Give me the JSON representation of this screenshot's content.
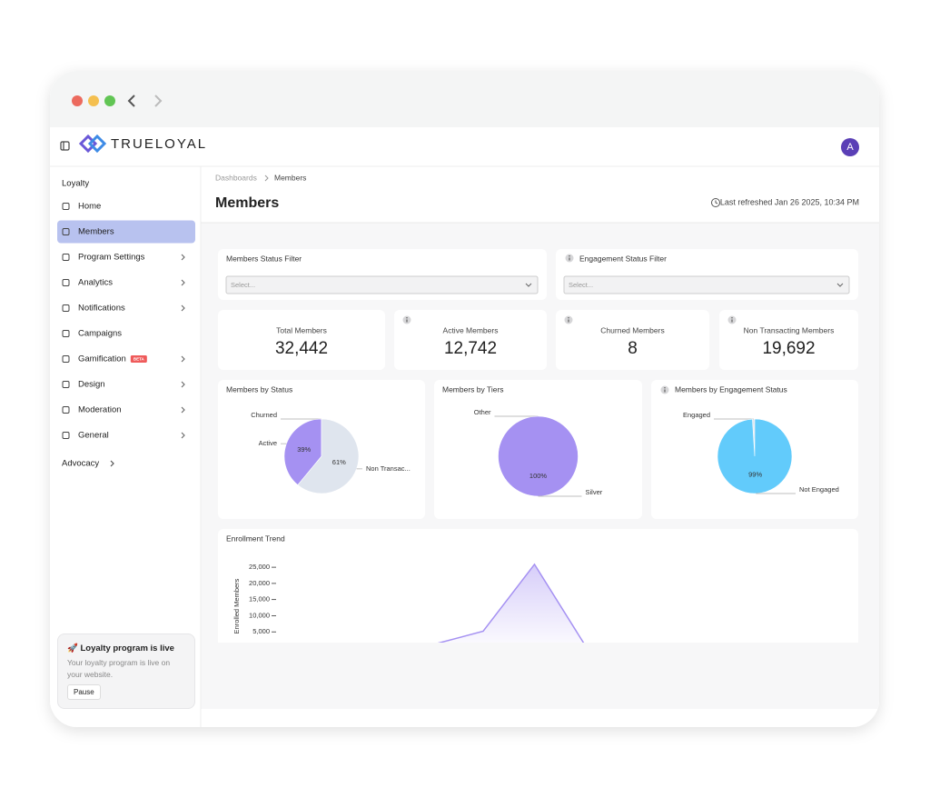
{
  "window": {
    "brand": "TRUELOYAL",
    "avatar": "A"
  },
  "sidebar": {
    "section": "Loyalty",
    "items": [
      {
        "label": "Home"
      },
      {
        "label": "Members",
        "active": true
      },
      {
        "label": "Program Settings",
        "chevron": true
      },
      {
        "label": "Analytics",
        "chevron": true
      },
      {
        "label": "Notifications",
        "chevron": true
      },
      {
        "label": "Campaigns"
      },
      {
        "label": "Gamification",
        "badge": "BETA",
        "chevron": true
      },
      {
        "label": "Design",
        "chevron": true
      },
      {
        "label": "Moderation",
        "chevron": true
      },
      {
        "label": "General",
        "chevron": true
      }
    ],
    "advocacy": "Advocacy",
    "promo": {
      "title": "🚀 Loyalty program is live",
      "text": "Your loyalty program is live on your website.",
      "button": "Pause"
    }
  },
  "breadcrumb": [
    "Dashboards",
    "Members"
  ],
  "title": "Members",
  "last_refreshed": "Last refreshed Jan 26 2025, 10:34 PM",
  "filters": [
    {
      "label": "Members Status Filter",
      "placeholder": "Select..."
    },
    {
      "label": "Engagement Status Filter",
      "placeholder": "Select...",
      "info": true
    }
  ],
  "kpis": [
    {
      "label": "Total Members",
      "value": "32,442"
    },
    {
      "label": "Active Members",
      "value": "12,742",
      "info": true
    },
    {
      "label": "Churned Members",
      "value": "8",
      "info": true
    },
    {
      "label": "Non Transacting Members",
      "value": "19,692",
      "info": true
    }
  ],
  "chart_data": [
    {
      "type": "pie",
      "title": "Members by Status",
      "categories": [
        "Churned",
        "Active",
        "Non Transac..."
      ],
      "values": [
        0.02,
        39,
        61
      ],
      "value_labels": [
        null,
        "39%",
        "61%"
      ],
      "colors": [
        "#8f7be0",
        "#a591f2",
        "#dfe5ee"
      ]
    },
    {
      "type": "pie",
      "title": "Members by Tiers",
      "categories": [
        "Other",
        "Silver"
      ],
      "values": [
        0,
        100
      ],
      "value_labels": [
        null,
        "100%"
      ],
      "colors": [
        "#dfe5ee",
        "#a591f2"
      ]
    },
    {
      "type": "pie",
      "title": "Members by Engagement Status",
      "info": true,
      "categories": [
        "Engaged",
        "Not Engaged"
      ],
      "values": [
        1,
        99
      ],
      "value_labels": [
        null,
        "99%"
      ],
      "colors": [
        "#dfe5ee",
        "#62cbfb"
      ]
    },
    {
      "type": "area",
      "title": "Enrollment Trend",
      "y_label": "Enrolled Members",
      "categories": [
        null,
        null,
        null,
        null,
        null,
        null,
        null,
        null,
        null,
        null,
        null,
        null
      ],
      "values": [
        0,
        0,
        0,
        1000,
        5200,
        25900,
        500,
        300,
        200,
        100,
        100,
        100
      ],
      "color": "#a591f2",
      "ylim": [
        0,
        27000
      ],
      "yticks": [
        {
          "value": 5000,
          "label": "5,000"
        },
        {
          "value": 10000,
          "label": "10,000"
        },
        {
          "value": 15000,
          "label": "15,000"
        },
        {
          "value": 20000,
          "label": "20,000"
        },
        {
          "value": 25000,
          "label": "25,000"
        }
      ]
    }
  ]
}
